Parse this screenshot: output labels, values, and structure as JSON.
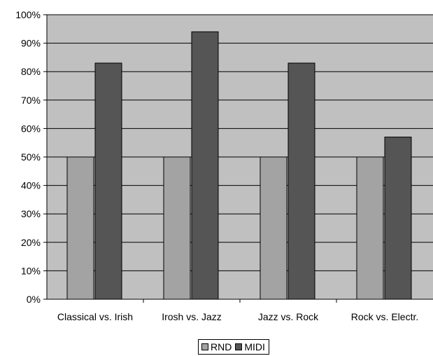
{
  "chart_data": {
    "type": "bar",
    "categories": [
      "Classical vs. Irish",
      "Irosh vs. Jazz",
      "Jazz vs. Rock",
      "Rock vs. Electr."
    ],
    "series": [
      {
        "name": "RND",
        "values": [
          50,
          50,
          50,
          50
        ],
        "color": "#a3a3a3"
      },
      {
        "name": "MIDI",
        "values": [
          83,
          94,
          83,
          57
        ],
        "color": "#555555"
      }
    ],
    "yticks": [
      "0%",
      "10%",
      "20%",
      "30%",
      "40%",
      "50%",
      "60%",
      "70%",
      "80%",
      "90%",
      "100%"
    ],
    "ylim": [
      0,
      100
    ],
    "grid": true,
    "legend_position": "bottom",
    "plot_background": "#c0c0c0",
    "title": "",
    "xlabel": "",
    "ylabel": ""
  }
}
